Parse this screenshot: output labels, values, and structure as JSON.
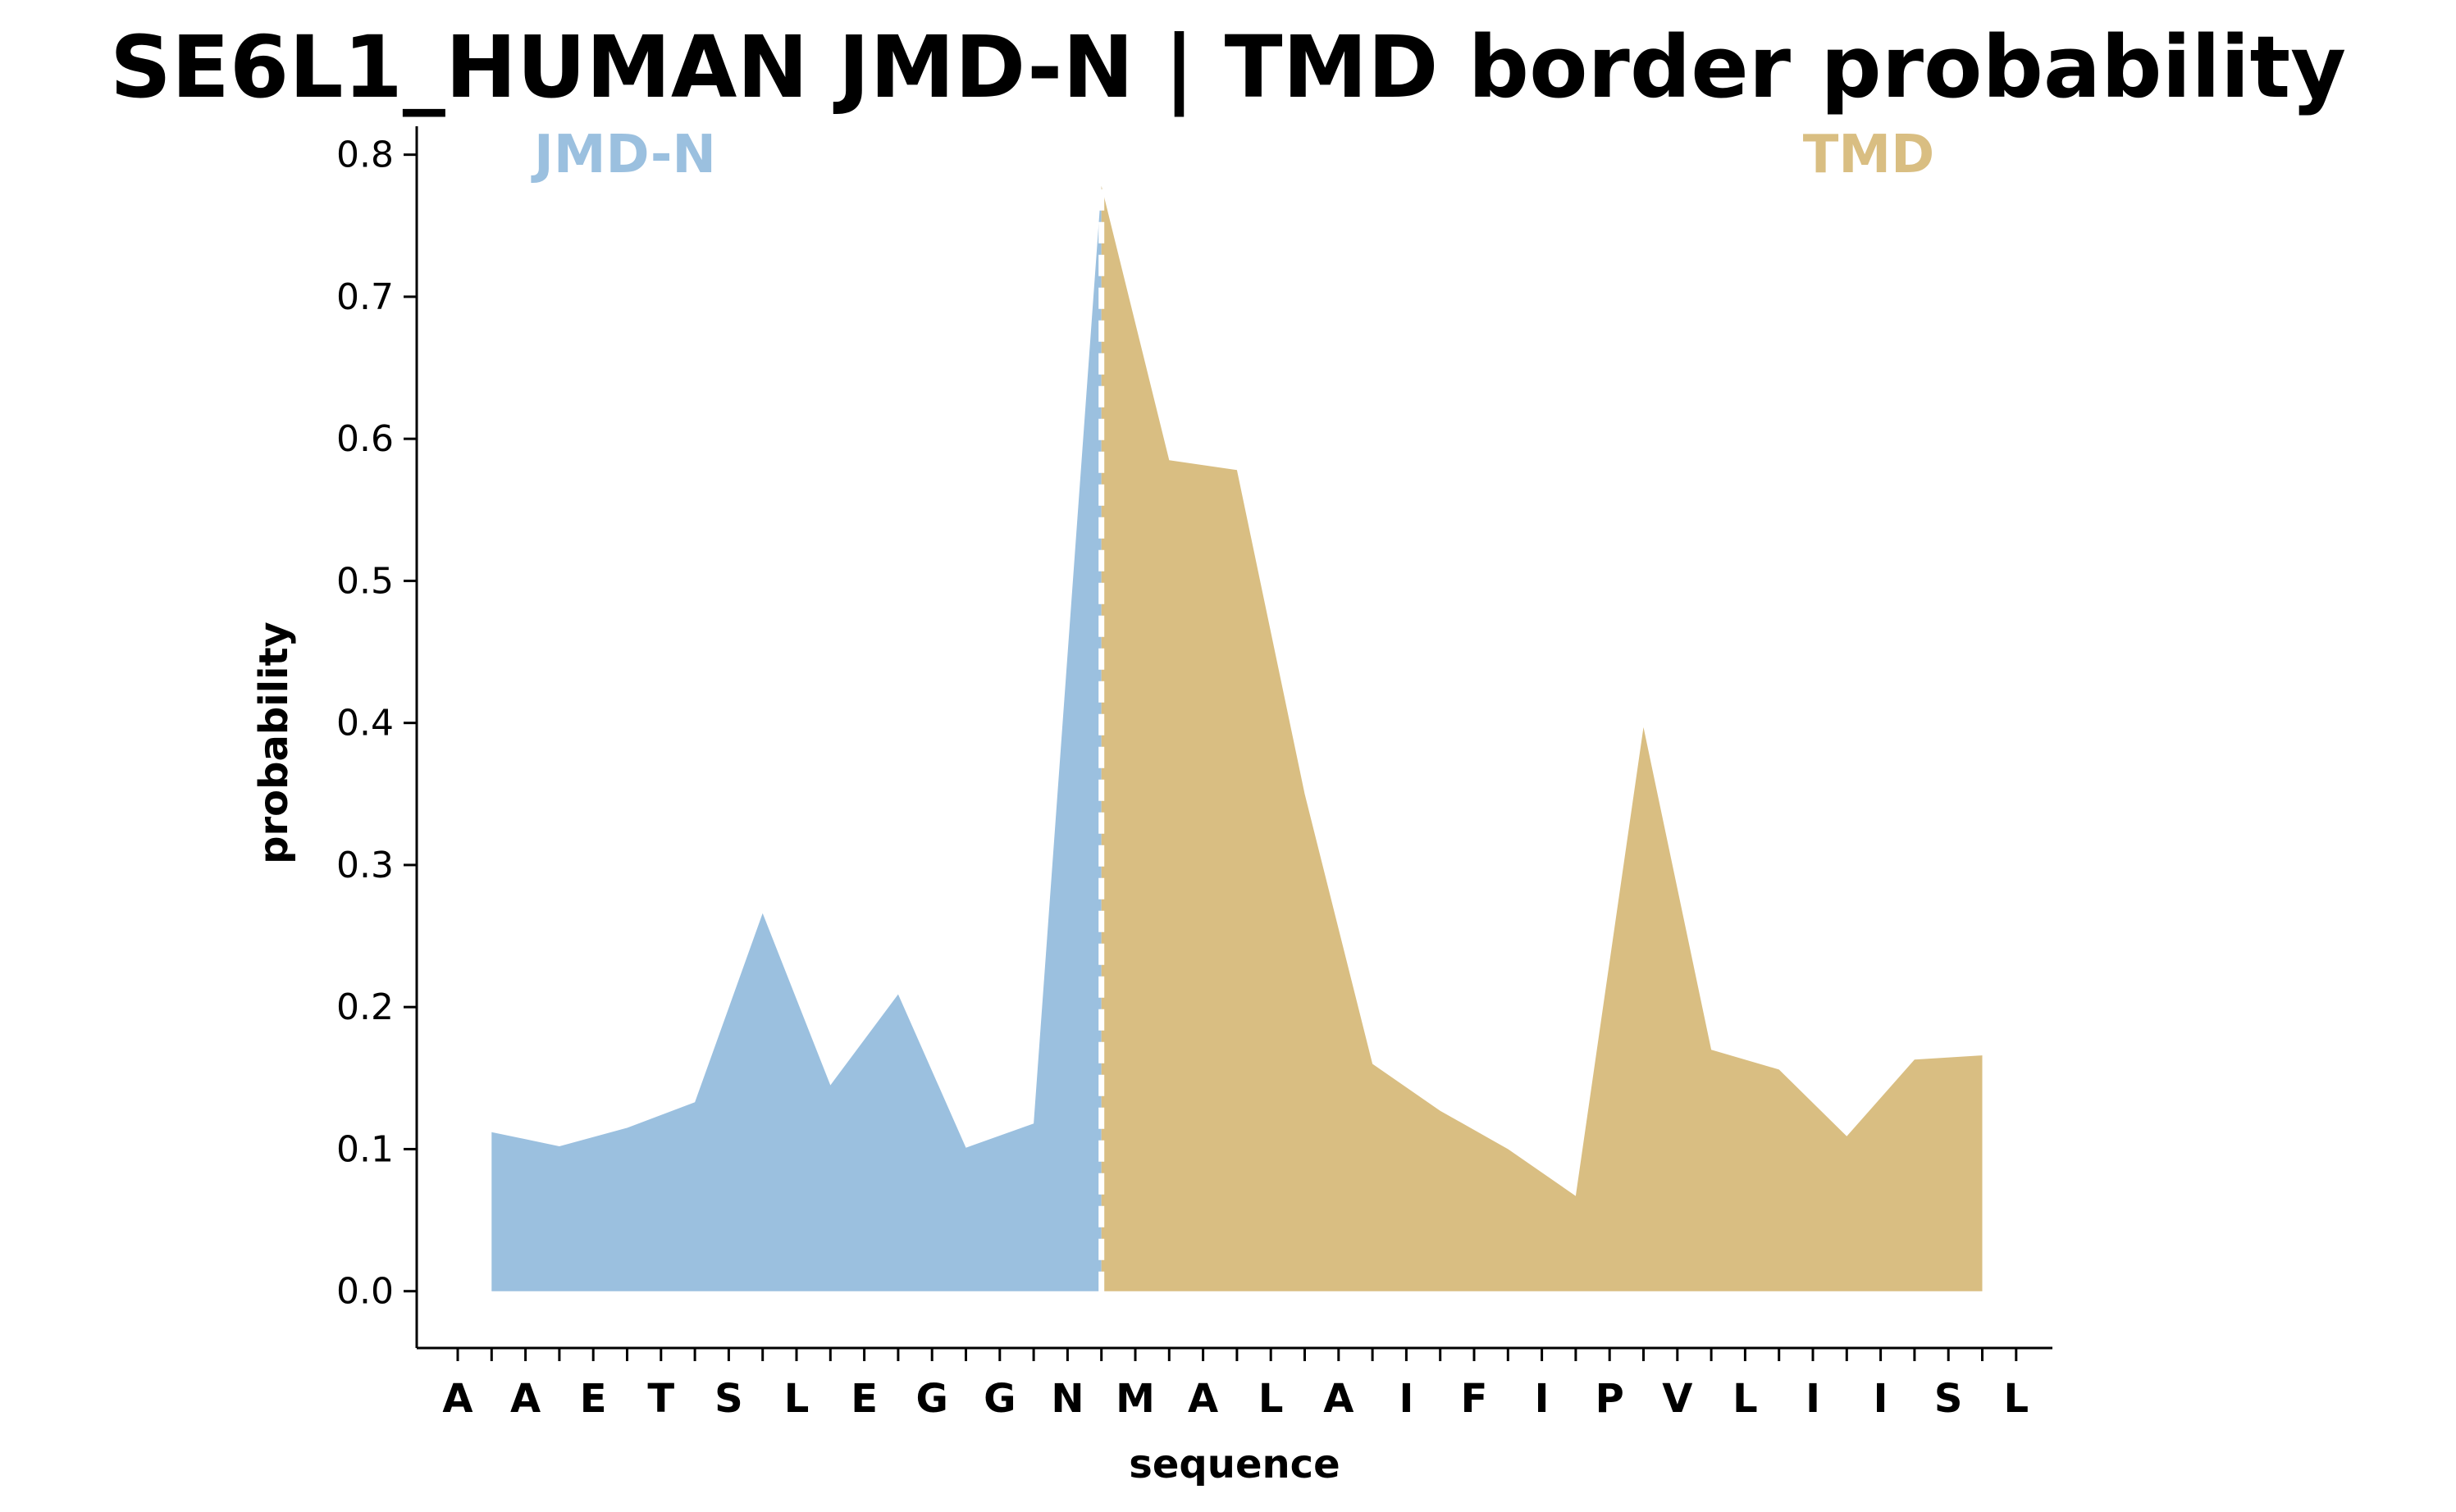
{
  "chart_data": {
    "type": "area",
    "title": "SE6L1_HUMAN JMD-N | TMD border probability",
    "xlabel": "sequence",
    "ylabel": "probability",
    "ylim": [
      -0.04,
      0.82
    ],
    "yticks": [
      0.0,
      0.1,
      0.2,
      0.3,
      0.4,
      0.5,
      0.6,
      0.7,
      0.8
    ],
    "ytick_labels": [
      "0.0",
      "0.1",
      "0.2",
      "0.3",
      "0.4",
      "0.5",
      "0.6",
      "0.7",
      "0.8"
    ],
    "grid": false,
    "border_index": 9.5,
    "categories": [
      "A",
      "A",
      "E",
      "T",
      "S",
      "L",
      "E",
      "G",
      "G",
      "N",
      "M",
      "A",
      "L",
      "A",
      "I",
      "F",
      "I",
      "P",
      "V",
      "L",
      "I",
      "I",
      "S",
      "L"
    ],
    "series": [
      {
        "name": "JMD-N",
        "color": "#9bc0df",
        "x": [
          0.5,
          1.5,
          2.5,
          3.5,
          4.5,
          5.5,
          6.5,
          7.5,
          8.5,
          9.5
        ],
        "values": [
          0.112,
          0.102,
          0.115,
          0.133,
          0.266,
          0.145,
          0.209,
          0.101,
          0.118,
          0.778
        ]
      },
      {
        "name": "TMD",
        "color": "#d9be82",
        "x": [
          9.5,
          10.5,
          11.5,
          12.5,
          13.5,
          14.5,
          15.5,
          16.5,
          17.5,
          18.5,
          19.5,
          20.5,
          21.5,
          22.5
        ],
        "values": [
          0.778,
          0.585,
          0.578,
          0.35,
          0.16,
          0.127,
          0.1,
          0.067,
          0.397,
          0.17,
          0.156,
          0.109,
          0.163,
          0.166
        ]
      }
    ],
    "border_line_color": "#ffffff"
  }
}
